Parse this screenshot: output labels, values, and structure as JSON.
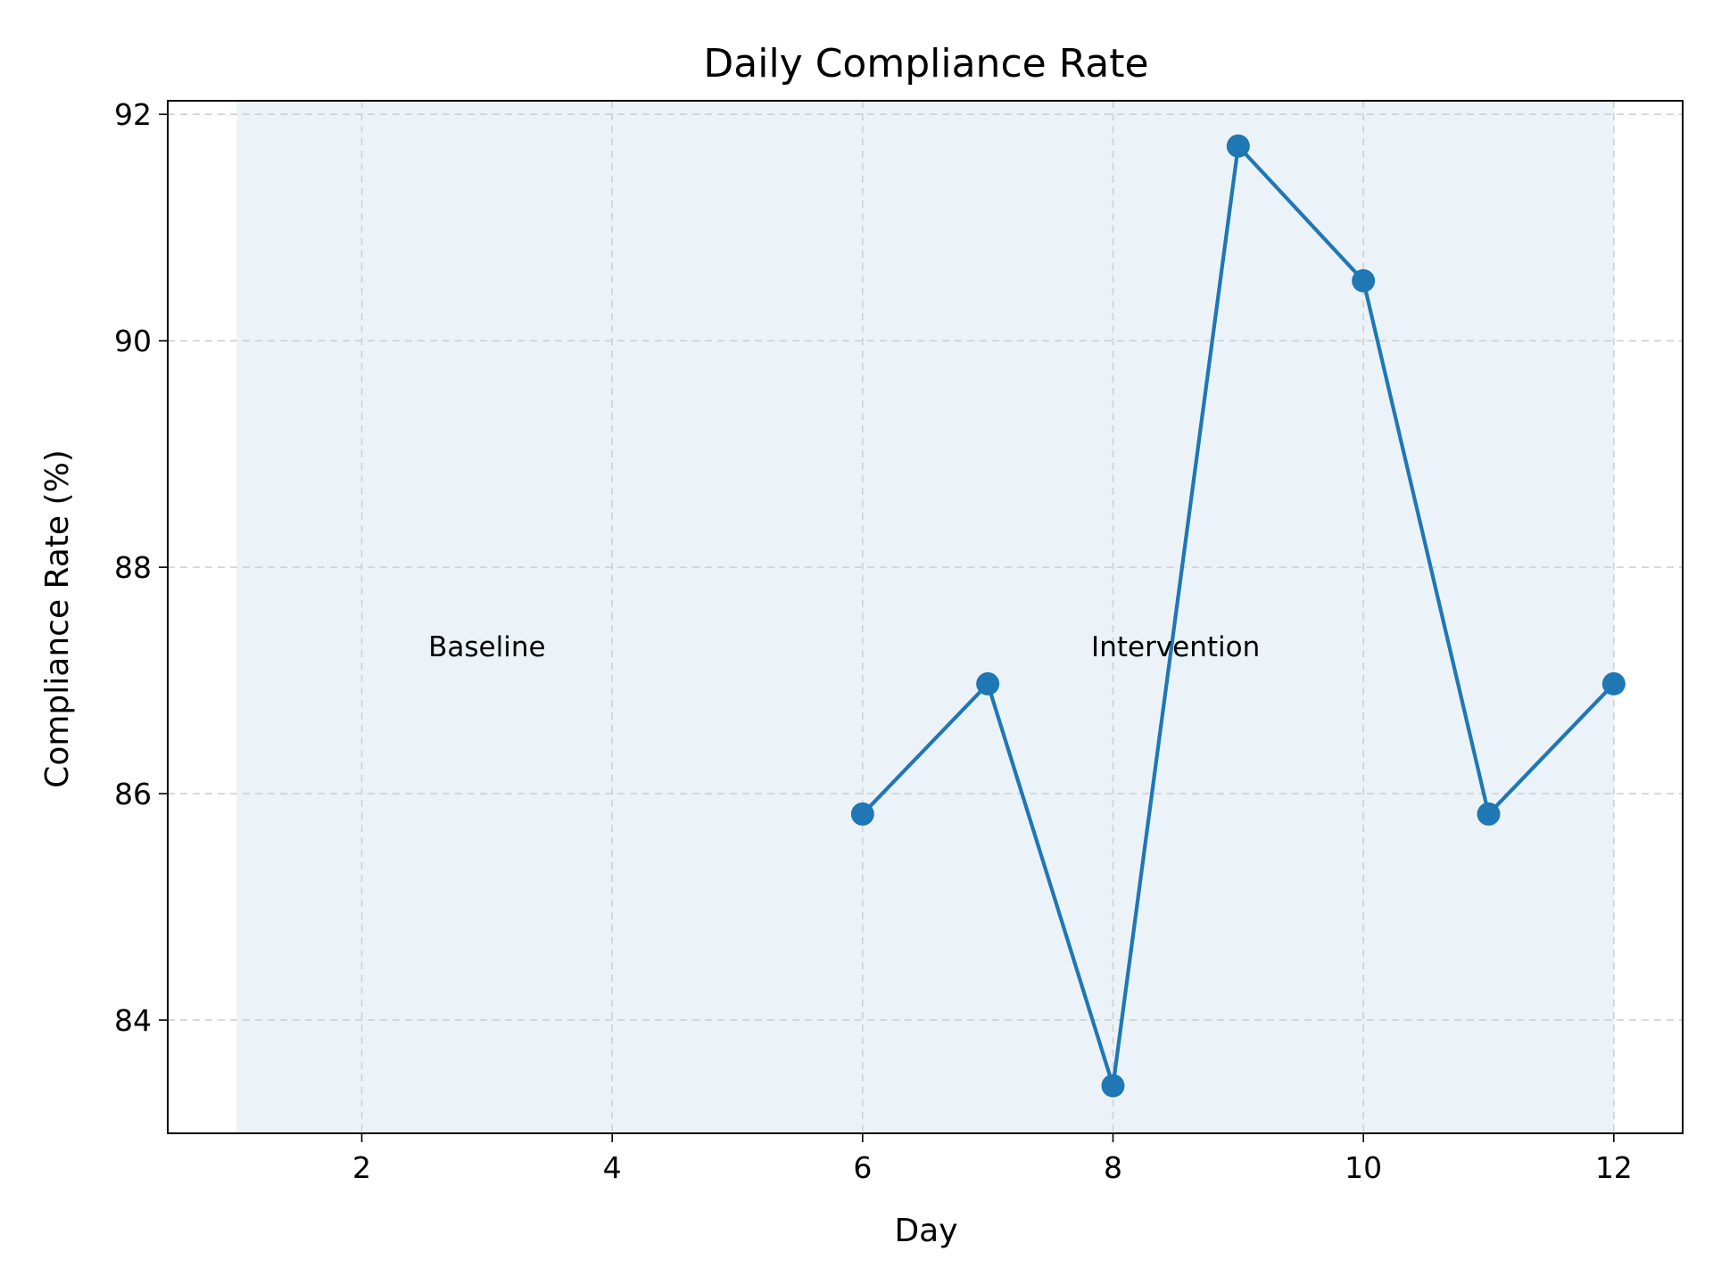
{
  "chart_data": {
    "type": "line",
    "title": "Daily Compliance Rate",
    "xlabel": "Day",
    "ylabel": "Compliance Rate (%)",
    "xlim": [
      0.45,
      12.55
    ],
    "ylim": [
      83.0,
      92.12
    ],
    "xticks": [
      2,
      4,
      6,
      8,
      10,
      12
    ],
    "yticks": [
      84,
      86,
      88,
      90,
      92
    ],
    "grid": true,
    "legend": "none",
    "series": [
      {
        "x": [
          6,
          7,
          8,
          9,
          10,
          11,
          12
        ],
        "values": [
          85.82,
          86.97,
          83.42,
          91.72,
          90.53,
          85.82,
          86.97
        ],
        "color": "#1f77b4",
        "marker": "circle"
      }
    ],
    "shaded_region": {
      "x": [
        1,
        12
      ],
      "color": "#1f77b4",
      "opacity": 0.09
    },
    "annotations": [
      {
        "text": "Baseline",
        "x": 3.0,
        "y": 87.3
      },
      {
        "text": "Intervention",
        "x": 8.5,
        "y": 87.3
      }
    ]
  }
}
